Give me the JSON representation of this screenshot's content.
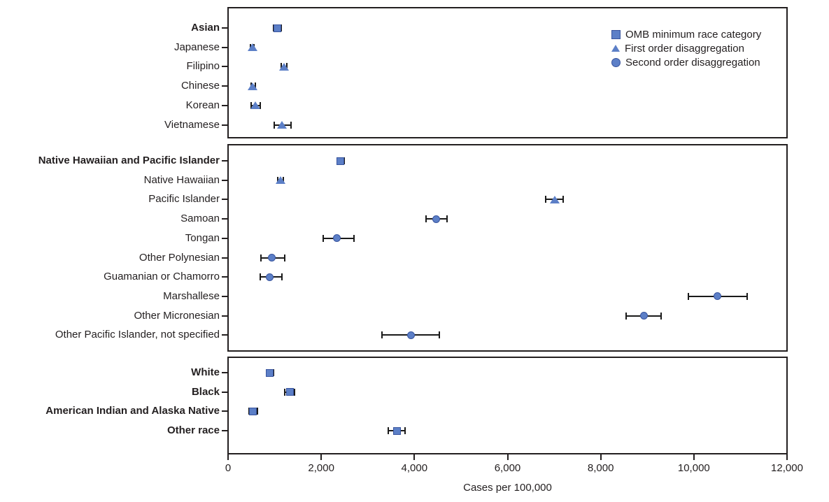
{
  "chart_data": {
    "type": "scatter",
    "subtype": "horizontal-dot-plot-with-error-bars",
    "xlabel": "Cases per 100,000",
    "xlim": [
      0,
      12000
    ],
    "xticks": [
      0,
      2000,
      4000,
      6000,
      8000,
      10000,
      12000
    ],
    "xtick_labels": [
      "0",
      "2,000",
      "4,000",
      "6,000",
      "8,000",
      "10,000",
      "12,000"
    ],
    "grid": false,
    "legend_position": "top-right-inside",
    "legend": [
      {
        "marker": "square",
        "label": "OMB minimum race category"
      },
      {
        "marker": "triangle",
        "label": "First order disaggregation"
      },
      {
        "marker": "circle",
        "label": "Second order disaggregation"
      }
    ],
    "colors": {
      "marker_fill": "#5C7FC7",
      "marker_border": "#38549E",
      "line": "#1a1a1a",
      "text": "#231f20"
    },
    "panels": [
      {
        "rows": [
          {
            "label": "Asian",
            "bold": true,
            "marker": "square",
            "value": 1060,
            "lo": 980,
            "hi": 1140
          },
          {
            "label": "Japanese",
            "bold": false,
            "marker": "triangle",
            "value": 520,
            "lo": 480,
            "hi": 560
          },
          {
            "label": "Filipino",
            "bold": false,
            "marker": "triangle",
            "value": 1200,
            "lo": 1140,
            "hi": 1260
          },
          {
            "label": "Chinese",
            "bold": false,
            "marker": "triangle",
            "value": 530,
            "lo": 490,
            "hi": 580
          },
          {
            "label": "Korean",
            "bold": false,
            "marker": "triangle",
            "value": 590,
            "lo": 500,
            "hi": 690
          },
          {
            "label": "Vietnamese",
            "bold": false,
            "marker": "triangle",
            "value": 1160,
            "lo": 990,
            "hi": 1350
          }
        ]
      },
      {
        "rows": [
          {
            "label": "Native Hawaiian and Pacific Islander",
            "bold": true,
            "marker": "square",
            "value": 2410,
            "lo": 2340,
            "hi": 2490
          },
          {
            "label": "Native Hawaiian",
            "bold": false,
            "marker": "triangle",
            "value": 1130,
            "lo": 1070,
            "hi": 1190
          },
          {
            "label": "Pacific Islander",
            "bold": false,
            "marker": "triangle",
            "value": 7010,
            "lo": 6820,
            "hi": 7200
          },
          {
            "label": "Samoan",
            "bold": false,
            "marker": "circle",
            "value": 4470,
            "lo": 4250,
            "hi": 4700
          },
          {
            "label": "Tongan",
            "bold": false,
            "marker": "circle",
            "value": 2340,
            "lo": 2040,
            "hi": 2700
          },
          {
            "label": "Other Polynesian",
            "bold": false,
            "marker": "circle",
            "value": 940,
            "lo": 700,
            "hi": 1210
          },
          {
            "label": "Guamanian or Chamorro",
            "bold": false,
            "marker": "circle",
            "value": 900,
            "lo": 690,
            "hi": 1150
          },
          {
            "label": "Marshallese",
            "bold": false,
            "marker": "circle",
            "value": 10500,
            "lo": 9880,
            "hi": 11150
          },
          {
            "label": "Other Micronesian",
            "bold": false,
            "marker": "circle",
            "value": 8930,
            "lo": 8550,
            "hi": 9300
          },
          {
            "label": "Other Pacific Islander, not specified",
            "bold": false,
            "marker": "circle",
            "value": 3920,
            "lo": 3300,
            "hi": 4540
          }
        ]
      },
      {
        "rows": [
          {
            "label": "White",
            "bold": true,
            "marker": "square",
            "value": 900,
            "lo": 830,
            "hi": 970
          },
          {
            "label": "Black",
            "bold": true,
            "marker": "square",
            "value": 1330,
            "lo": 1220,
            "hi": 1430
          },
          {
            "label": "American Indian and Alaska Native",
            "bold": true,
            "marker": "square",
            "value": 540,
            "lo": 450,
            "hi": 630
          },
          {
            "label": "Other race",
            "bold": true,
            "marker": "square",
            "value": 3630,
            "lo": 3440,
            "hi": 3800
          }
        ]
      }
    ]
  }
}
